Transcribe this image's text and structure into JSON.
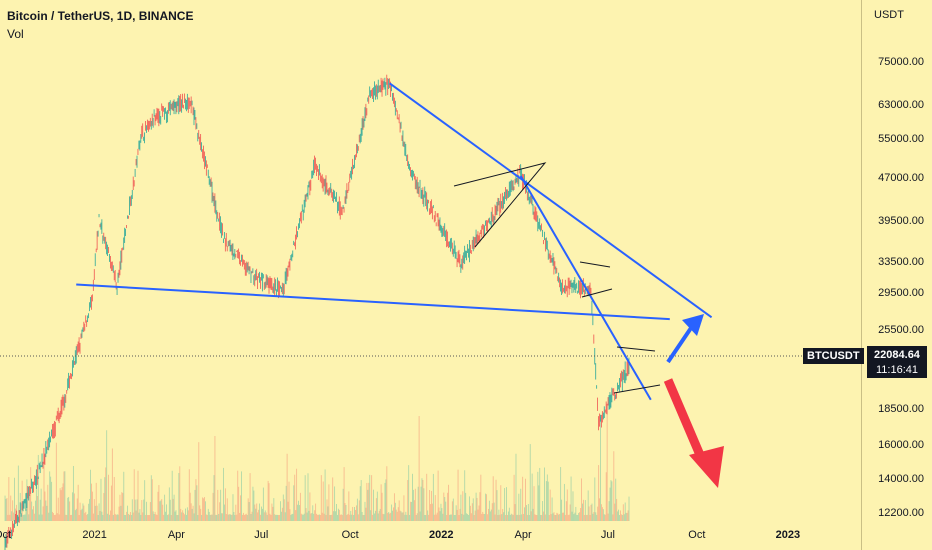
{
  "header": {
    "title": "Bitcoin / TetherUS, 1D, BINANCE",
    "volume_label": "Vol"
  },
  "price_axis": {
    "unit": "USDT",
    "ticks": [
      "75000.00",
      "63000.00",
      "55000.00",
      "47000.00",
      "39500.00",
      "33500.00",
      "29500.00",
      "25500.00",
      "18500.00",
      "16000.00",
      "14000.00",
      "12200.00"
    ]
  },
  "time_axis": {
    "ticks": [
      "Oct",
      "2021",
      "Apr",
      "Jul",
      "Oct",
      "2022",
      "Apr",
      "Jul",
      "Oct",
      "2023"
    ]
  },
  "marker": {
    "symbol": "BTCUSDT",
    "price": "22084.64",
    "countdown": "11:16:41"
  },
  "colors": {
    "background": "#fdf3b0",
    "up": "#26a69a",
    "down": "#ef5350",
    "trend": "#2962ff",
    "arrow_up": "#2962ff",
    "arrow_down": "#f23645"
  },
  "chart_data": {
    "type": "candlestick",
    "title": "Bitcoin / TetherUS, 1D, BINANCE",
    "y_scale": "log",
    "ylim": [
      11500,
      90000
    ],
    "price_path": [
      {
        "t": "2020-10-01",
        "p": 10800
      },
      {
        "t": "2020-11-01",
        "p": 13800
      },
      {
        "t": "2020-12-01",
        "p": 19000
      },
      {
        "t": "2021-01-01",
        "p": 29000
      },
      {
        "t": "2021-01-08",
        "p": 40000
      },
      {
        "t": "2021-01-27",
        "p": 30500
      },
      {
        "t": "2021-02-21",
        "p": 56000
      },
      {
        "t": "2021-03-13",
        "p": 61000
      },
      {
        "t": "2021-04-14",
        "p": 64500
      },
      {
        "t": "2021-05-19",
        "p": 37000
      },
      {
        "t": "2021-06-22",
        "p": 31500
      },
      {
        "t": "2021-07-20",
        "p": 29800
      },
      {
        "t": "2021-08-23",
        "p": 49500
      },
      {
        "t": "2021-09-21",
        "p": 41000
      },
      {
        "t": "2021-10-20",
        "p": 66000
      },
      {
        "t": "2021-11-10",
        "p": 69000
      },
      {
        "t": "2021-12-04",
        "p": 47500
      },
      {
        "t": "2022-01-24",
        "p": 33500
      },
      {
        "t": "2022-03-28",
        "p": 48000
      },
      {
        "t": "2022-05-09",
        "p": 30500
      },
      {
        "t": "2022-06-10",
        "p": 30000
      },
      {
        "t": "2022-06-18",
        "p": 17600
      },
      {
        "t": "2022-07-20",
        "p": 22084
      }
    ],
    "annotations": [
      {
        "type": "trendline",
        "from": {
          "t": "2020-12-15",
          "p": 30700
        },
        "to": {
          "t": "2022-09-01",
          "p": 26700
        }
      },
      {
        "type": "trendline",
        "from": {
          "t": "2021-11-10",
          "p": 69000
        },
        "to": {
          "t": "2022-10-15",
          "p": 26900
        }
      },
      {
        "type": "trendline",
        "from": {
          "t": "2022-03-28",
          "p": 47500
        },
        "to": {
          "t": "2022-08-12",
          "p": 19300
        }
      },
      {
        "type": "triangle",
        "from": "2022-01-10",
        "to": "2022-03-28"
      },
      {
        "type": "flag",
        "from": "2022-05-12",
        "to": "2022-06-08"
      },
      {
        "type": "flag",
        "from": "2022-06-18",
        "to": "2022-07-24"
      },
      {
        "type": "arrow",
        "direction": "up",
        "color": "#2962ff"
      },
      {
        "type": "arrow",
        "direction": "down",
        "color": "#f23645"
      }
    ],
    "current_price": 22084.64
  }
}
